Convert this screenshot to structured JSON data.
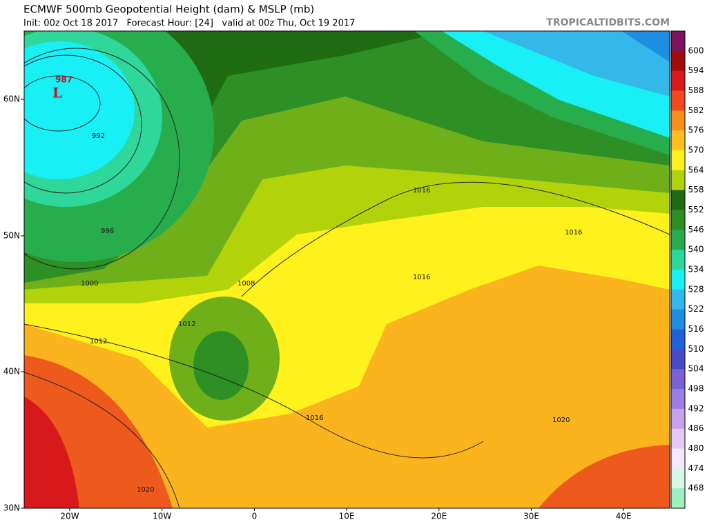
{
  "header": {
    "title": "ECMWF 500mb Geopotential Height (dam) & MSLP (mb)",
    "subtitle": "Init: 00z Oct 18 2017   Forecast Hour: [24]   valid at 00z Thu, Oct 19 2017",
    "watermark": "TROPICALTIDBITS.COM"
  },
  "map": {
    "lat_labels": [
      "60N",
      "50N",
      "40N",
      "30N"
    ],
    "lon_labels": [
      "20W",
      "10W",
      "0",
      "10E",
      "20E",
      "30E",
      "40E"
    ],
    "low": {
      "symbol": "L",
      "pressure": 987
    },
    "isobar_labels": [
      992,
      996,
      1000,
      1012,
      1012,
      1008,
      1016,
      1016,
      1016,
      1016,
      1020,
      1020
    ]
  },
  "colorbar": {
    "levels": [
      600,
      594,
      588,
      582,
      576,
      570,
      564,
      558,
      552,
      546,
      540,
      534,
      528,
      522,
      516,
      510,
      504,
      498,
      492,
      486,
      480,
      474,
      468
    ],
    "colors": [
      "#7d1460",
      "#a10c0c",
      "#d7191c",
      "#ee4a1e",
      "#f9901d",
      "#fdc01e",
      "#fff21c",
      "#b2d30a",
      "#1f6b14",
      "#2d8f24",
      "#27ad4c",
      "#2fd79a",
      "#18f0f5",
      "#34b8ea",
      "#1f8ee0",
      "#2060d8",
      "#4a4ac8",
      "#7a62d4",
      "#9a7ee6",
      "#c6a2ee",
      "#e6c8f4",
      "#f4e8fa",
      "#d8f6e6",
      "#9ef0c0"
    ]
  }
}
